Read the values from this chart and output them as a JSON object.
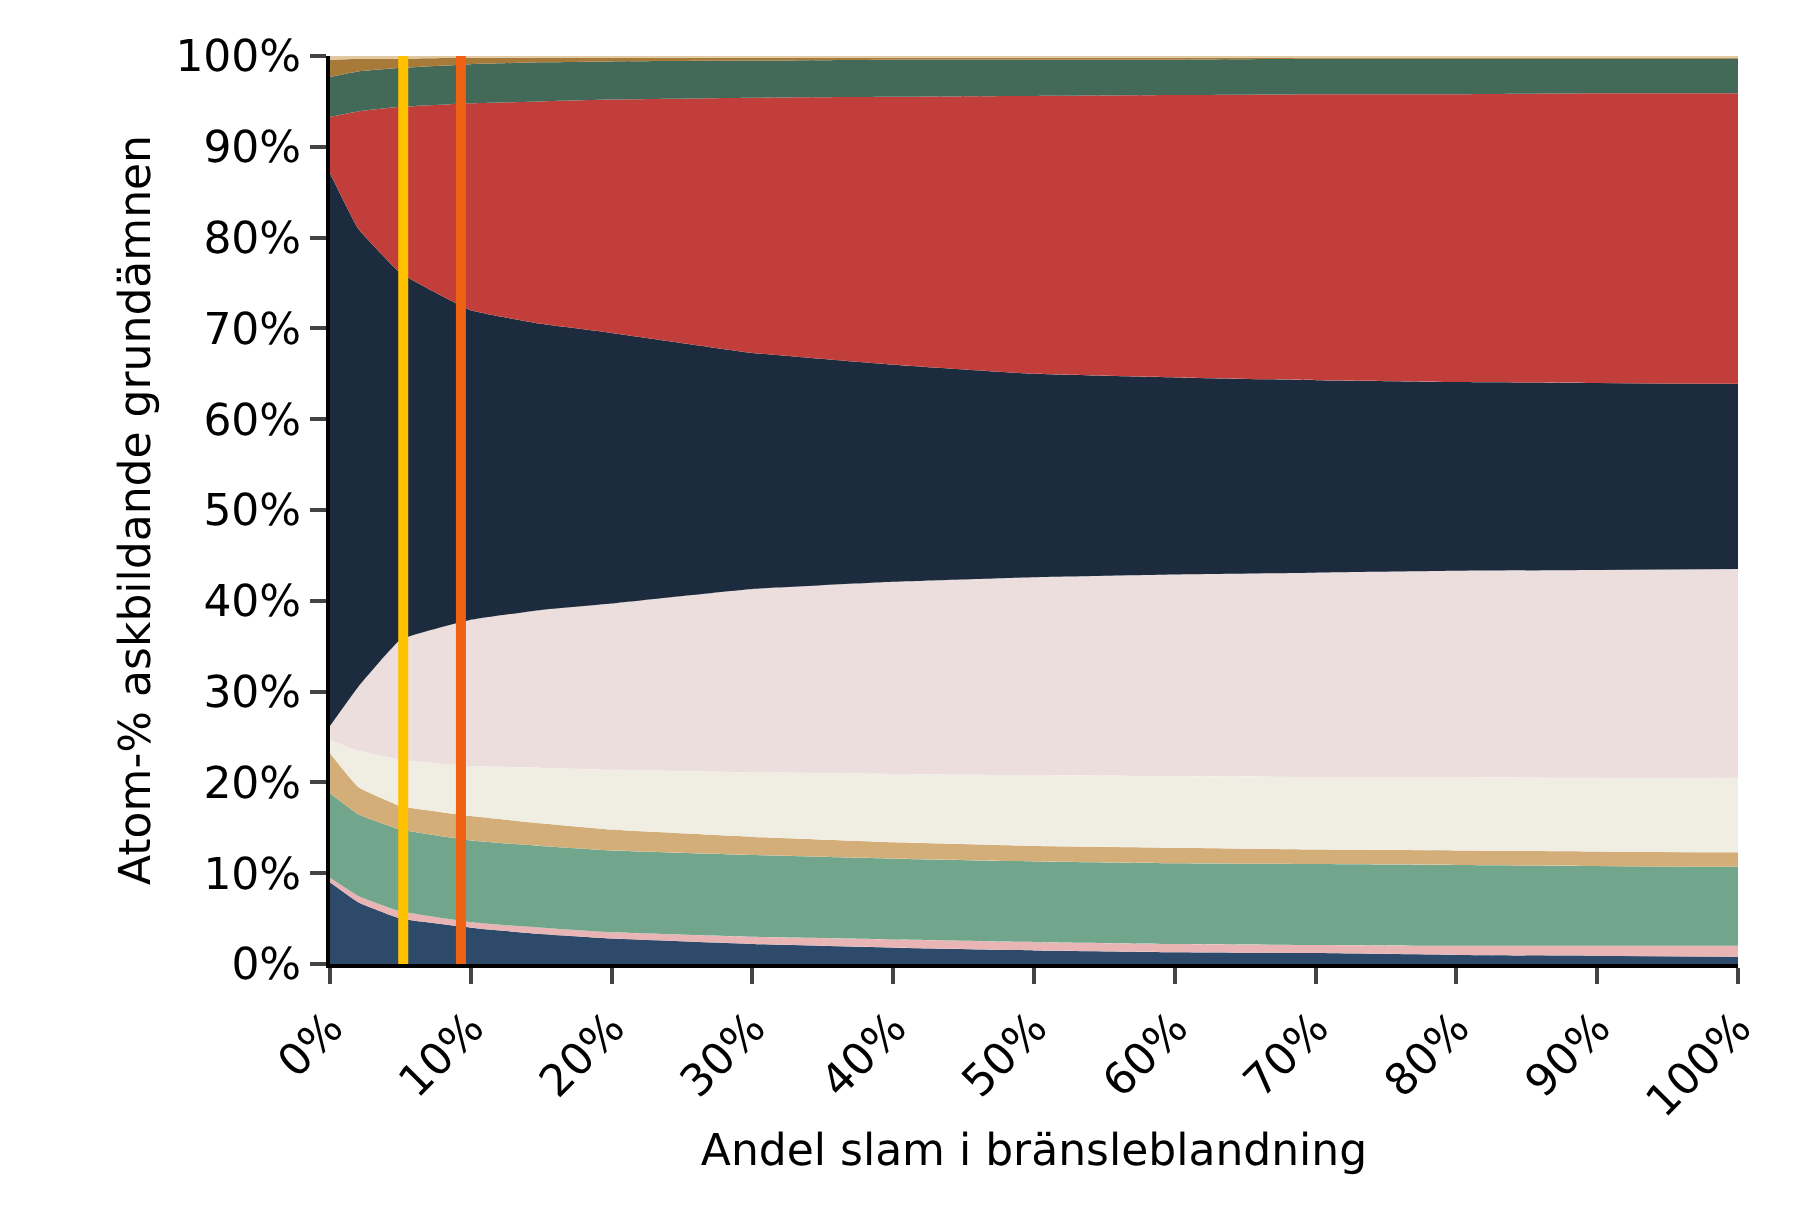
{
  "chart_data": {
    "type": "area",
    "stacked": true,
    "xlabel": "Andel slam i bränsleblandning",
    "ylabel": "Atom-% askbildande grundämnen",
    "x": [
      0,
      2,
      5,
      10,
      15,
      20,
      30,
      40,
      50,
      60,
      70,
      80,
      90,
      100
    ],
    "xlim": [
      0,
      100
    ],
    "ylim": [
      0,
      100
    ],
    "xticks": [
      {
        "value": 0,
        "label": "0%"
      },
      {
        "value": 10,
        "label": "10%"
      },
      {
        "value": 20,
        "label": "20%"
      },
      {
        "value": 30,
        "label": "30%"
      },
      {
        "value": 40,
        "label": "40%"
      },
      {
        "value": 50,
        "label": "50%"
      },
      {
        "value": 60,
        "label": "60%"
      },
      {
        "value": 70,
        "label": "70%"
      },
      {
        "value": 80,
        "label": "80%"
      },
      {
        "value": 90,
        "label": "90%"
      },
      {
        "value": 100,
        "label": "100%"
      }
    ],
    "yticks": [
      {
        "value": 0,
        "label": "0%"
      },
      {
        "value": 10,
        "label": "10%"
      },
      {
        "value": 20,
        "label": "20%"
      },
      {
        "value": 30,
        "label": "30%"
      },
      {
        "value": 40,
        "label": "40%"
      },
      {
        "value": 50,
        "label": "50%"
      },
      {
        "value": 60,
        "label": "60%"
      },
      {
        "value": 70,
        "label": "70%"
      },
      {
        "value": 80,
        "label": "80%"
      },
      {
        "value": 90,
        "label": "90%"
      },
      {
        "value": 100,
        "label": "100%"
      }
    ],
    "series": [
      {
        "color": "#2e4a6b",
        "values": [
          9,
          6.8,
          5.0,
          4.0,
          3.3,
          2.8,
          2.2,
          1.8,
          1.5,
          1.3,
          1.2,
          1.0,
          0.9,
          0.8
        ]
      },
      {
        "color": "#e8b4b4",
        "values": [
          0.5,
          0.7,
          0.8,
          0.6,
          0.7,
          0.7,
          0.8,
          0.9,
          0.9,
          0.9,
          0.9,
          1.0,
          1.1,
          1.2
        ]
      },
      {
        "color": "#72a68c",
        "values": [
          9.3,
          9.0,
          9.0,
          9.0,
          9.0,
          9.0,
          9.0,
          8.9,
          8.9,
          8.9,
          8.9,
          8.9,
          8.8,
          8.7
        ]
      },
      {
        "color": "#d4ae78",
        "values": [
          4.4,
          3.0,
          2.6,
          2.7,
          2.5,
          2.3,
          2.0,
          1.8,
          1.7,
          1.7,
          1.6,
          1.6,
          1.6,
          1.6
        ]
      },
      {
        "color": "#f0ede3",
        "values": [
          1.5,
          4.0,
          5.1,
          5.5,
          6.1,
          6.6,
          7.1,
          7.5,
          7.8,
          7.9,
          8.0,
          8.1,
          8.1,
          8.2
        ]
      },
      {
        "color": "#ecdedd",
        "values": [
          1.5,
          7.0,
          13.2,
          16.1,
          17.4,
          18.3,
          20.2,
          21.2,
          21.8,
          22.2,
          22.5,
          22.7,
          22.9,
          23.0
        ]
      },
      {
        "color": "#1c2b3e",
        "values": [
          60.9,
          50.5,
          40.4,
          34.1,
          31.5,
          29.8,
          26.0,
          23.9,
          22.4,
          21.7,
          21.2,
          20.8,
          20.6,
          20.4
        ]
      },
      {
        "color": "#c13e3b",
        "values": [
          6.2,
          12.9,
          18.3,
          22.8,
          24.5,
          25.7,
          28.1,
          29.5,
          30.6,
          31.1,
          31.5,
          31.7,
          31.9,
          32.0
        ]
      },
      {
        "color": "#436958",
        "values": [
          4.4,
          4.4,
          4.3,
          4.3,
          4.3,
          4.2,
          4.1,
          4.1,
          4.0,
          3.9,
          3.9,
          3.9,
          3.8,
          3.8
        ]
      },
      {
        "color": "#a77a3a",
        "values": [
          1.9,
          1.4,
          1.0,
          0.7,
          0.5,
          0.4,
          0.3,
          0.2,
          0.2,
          0.2,
          0.1,
          0.1,
          0.1,
          0.1
        ]
      },
      {
        "color": "#e0c9a0",
        "values": [
          0.4,
          0.3,
          0.3,
          0.2,
          0.2,
          0.2,
          0.2,
          0.2,
          0.2,
          0.2,
          0.2,
          0.2,
          0.2,
          0.2
        ]
      }
    ],
    "ref_lines": [
      {
        "axis": "x",
        "value": 5.2,
        "color": "#ffc000"
      },
      {
        "axis": "x",
        "value": 9.3,
        "color": "#ef6113"
      }
    ]
  }
}
